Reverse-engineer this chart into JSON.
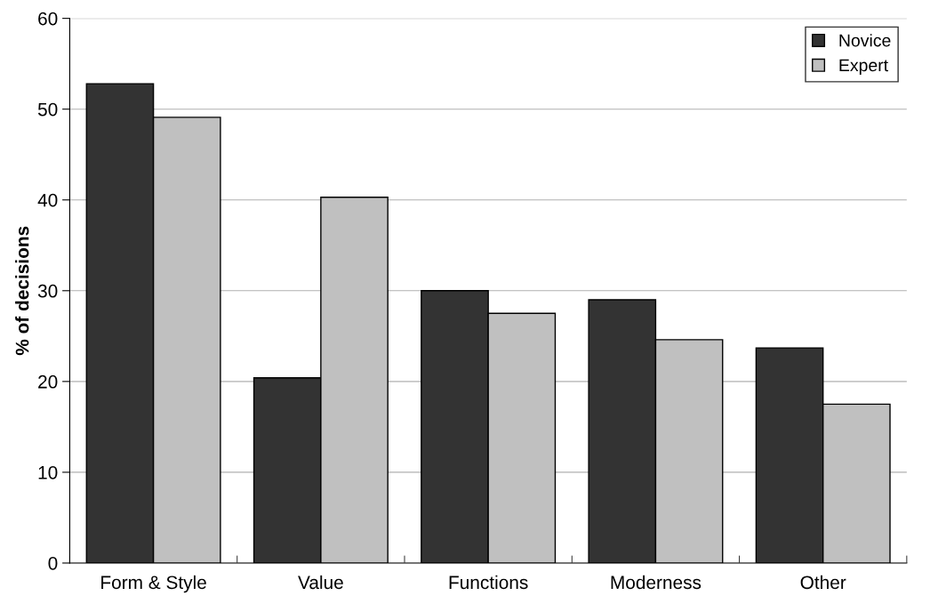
{
  "chart_data": {
    "type": "bar",
    "ylabel": "% of decisions",
    "categories": [
      "Form & Style",
      "Value",
      "Functions",
      "Moderness",
      "Other"
    ],
    "series": [
      {
        "name": "Novice",
        "color": "#333333",
        "values": [
          52.8,
          20.4,
          30.0,
          29.0,
          23.7
        ]
      },
      {
        "name": "Expert",
        "color": "#c0c0c0",
        "values": [
          49.1,
          40.3,
          27.5,
          24.6,
          17.5
        ]
      }
    ],
    "ylim": [
      0,
      60
    ],
    "yticks": [
      0,
      10,
      20,
      30,
      40,
      50,
      60
    ],
    "grid": "y",
    "legend": "top right"
  }
}
